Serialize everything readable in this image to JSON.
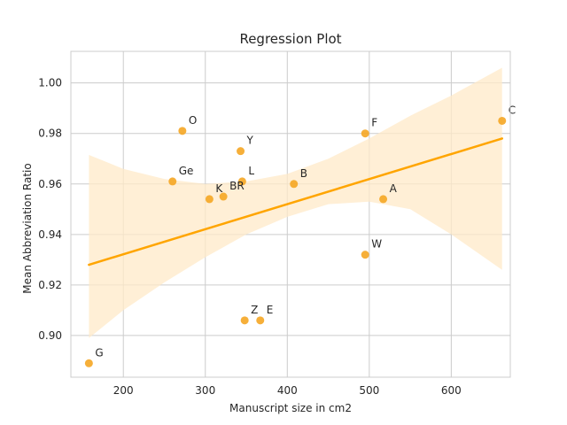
{
  "chart_data": {
    "type": "scatter",
    "title": "Regression Plot",
    "xlabel": "Manuscript size in cm2",
    "ylabel": "Mean Abbreviation Ratio",
    "xlim": [
      136,
      672
    ],
    "ylim": [
      0.8835,
      1.0125
    ],
    "xticks": [
      200,
      300,
      400,
      500,
      600
    ],
    "yticks": [
      0.9,
      0.92,
      0.94,
      0.96,
      0.98,
      1.0
    ],
    "grid": true,
    "colors": {
      "point": "#f5a623",
      "line": "#ffa500",
      "band": "#ffe9c8",
      "grid": "#cccccc",
      "frame": "#cccccc"
    },
    "points": [
      {
        "label": "O",
        "x": 272,
        "y": 0.981
      },
      {
        "label": "Ge",
        "x": 260,
        "y": 0.961
      },
      {
        "label": "K",
        "x": 305,
        "y": 0.954
      },
      {
        "label": "BR",
        "x": 322,
        "y": 0.955
      },
      {
        "label": "Y",
        "x": 343,
        "y": 0.973
      },
      {
        "label": "L",
        "x": 345,
        "y": 0.961
      },
      {
        "label": "B",
        "x": 408,
        "y": 0.96
      },
      {
        "label": "F",
        "x": 495,
        "y": 0.98
      },
      {
        "label": "A",
        "x": 517,
        "y": 0.954
      },
      {
        "label": "W",
        "x": 495,
        "y": 0.932
      },
      {
        "label": "C",
        "x": 662,
        "y": 0.985
      },
      {
        "label": "Z",
        "x": 348,
        "y": 0.906
      },
      {
        "label": "E",
        "x": 367,
        "y": 0.906
      },
      {
        "label": "G",
        "x": 158,
        "y": 0.889
      }
    ],
    "regression": {
      "x": [
        158,
        662
      ],
      "y": [
        0.928,
        0.978
      ]
    },
    "confidence_band": {
      "x": [
        158,
        200,
        250,
        300,
        350,
        400,
        450,
        500,
        550,
        600,
        662
      ],
      "upper": [
        0.9715,
        0.966,
        0.962,
        0.96,
        0.961,
        0.964,
        0.97,
        0.978,
        0.987,
        0.995,
        1.006
      ],
      "lower": [
        0.899,
        0.91,
        0.921,
        0.931,
        0.94,
        0.947,
        0.952,
        0.953,
        0.95,
        0.94,
        0.926
      ]
    }
  }
}
